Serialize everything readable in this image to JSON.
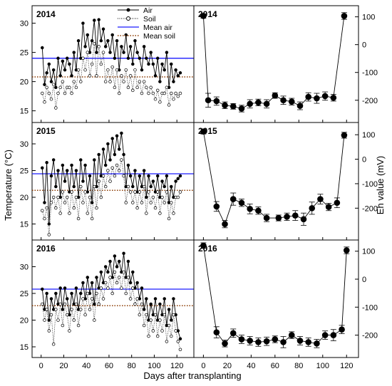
{
  "figure": {
    "y_left_label": "Temperature (°C)",
    "y_right_label": "Eh value (mV)",
    "x_label": "Days after transplanting"
  },
  "legend": {
    "items": [
      {
        "label": "Air",
        "kind": "line-filled",
        "color": "#000000"
      },
      {
        "label": "Soil",
        "kind": "dotted-open",
        "color": "#000000"
      },
      {
        "label": "Mean air",
        "kind": "solid",
        "color": "#1a1aff"
      },
      {
        "label": "Mean soil",
        "kind": "dotted",
        "color": "#8b3a00"
      }
    ]
  },
  "colors": {
    "air": "#000000",
    "soil": "#000000",
    "mean_air": "#1a1aff",
    "mean_soil": "#8b3a00"
  },
  "chart_data": [
    {
      "type": "line",
      "panel": "temperature-2014",
      "title": "2014",
      "xlim": [
        -8,
        135
      ],
      "ylim": [
        13,
        33
      ],
      "yticks": [
        15,
        20,
        25,
        30
      ],
      "mean_air": 24.0,
      "mean_soil": 20.8,
      "series": [
        {
          "name": "Air",
          "x": [
            1,
            3,
            5,
            7,
            9,
            11,
            13,
            15,
            17,
            19,
            21,
            23,
            25,
            27,
            29,
            31,
            33,
            35,
            37,
            39,
            41,
            43,
            45,
            47,
            49,
            51,
            53,
            55,
            57,
            59,
            61,
            63,
            65,
            67,
            69,
            71,
            73,
            75,
            77,
            79,
            81,
            83,
            85,
            87,
            89,
            91,
            93,
            95,
            97,
            99,
            101,
            103,
            105,
            107,
            109,
            111,
            113,
            115,
            117,
            119,
            121,
            123
          ],
          "y": [
            25.8,
            19.5,
            21.5,
            23,
            20,
            22,
            19,
            24,
            21,
            23.5,
            22,
            24,
            23,
            21,
            25,
            22,
            27,
            24,
            30,
            26,
            28,
            25,
            27,
            30.5,
            25,
            30.6,
            27,
            29,
            26,
            27,
            25,
            28,
            24,
            27,
            22,
            26,
            25,
            28,
            24,
            26,
            23,
            27,
            25,
            24,
            22,
            26,
            24,
            23,
            25,
            23,
            21,
            24,
            20,
            23,
            22,
            25,
            19,
            23,
            20,
            22,
            21,
            21.5
          ]
        },
        {
          "name": "Soil",
          "x": [
            1,
            3,
            5,
            7,
            9,
            11,
            13,
            15,
            17,
            19,
            21,
            23,
            25,
            27,
            29,
            31,
            33,
            35,
            37,
            39,
            41,
            43,
            45,
            47,
            49,
            51,
            53,
            55,
            57,
            59,
            61,
            63,
            65,
            67,
            69,
            71,
            73,
            75,
            77,
            79,
            81,
            83,
            85,
            87,
            89,
            91,
            93,
            95,
            97,
            99,
            101,
            103,
            105,
            107,
            109,
            111,
            113,
            115,
            117,
            119,
            121,
            123
          ],
          "y": [
            18,
            16.5,
            19,
            18,
            17,
            19.5,
            15.5,
            18,
            19,
            20,
            18,
            19,
            19,
            18,
            20,
            19,
            22,
            20,
            24,
            22,
            25,
            21,
            23,
            26.5,
            21,
            26,
            23,
            25,
            20,
            22,
            20,
            22.5,
            19,
            22,
            18,
            21,
            20,
            22,
            19,
            21,
            18.5,
            22,
            19,
            20,
            18,
            20,
            19,
            18,
            19,
            18,
            17,
            18.5,
            16.5,
            18,
            18,
            19,
            16,
            18,
            17,
            18,
            17.5,
            18
          ]
        }
      ]
    },
    {
      "type": "line",
      "panel": "temperature-2015",
      "title": "2015",
      "xlim": [
        -8,
        135
      ],
      "ylim": [
        12,
        34
      ],
      "yticks": [
        15,
        20,
        25,
        30
      ],
      "mean_air": 24.4,
      "mean_soil": 21.3,
      "series": [
        {
          "name": "Air",
          "x": [
            1,
            3,
            5,
            7,
            9,
            11,
            13,
            15,
            17,
            19,
            21,
            23,
            25,
            27,
            29,
            31,
            33,
            35,
            37,
            39,
            41,
            43,
            45,
            47,
            49,
            51,
            53,
            55,
            57,
            59,
            61,
            63,
            65,
            67,
            69,
            71,
            73,
            75,
            77,
            79,
            81,
            83,
            85,
            87,
            89,
            91,
            93,
            95,
            97,
            99,
            101,
            103,
            105,
            107,
            109,
            111,
            113,
            115,
            117,
            119,
            121,
            123
          ],
          "y": [
            25.5,
            19,
            26.5,
            15,
            24,
            27,
            22,
            25,
            20,
            26,
            23,
            25,
            21,
            26,
            22,
            25,
            20,
            27,
            23,
            26,
            21,
            24,
            19,
            27,
            22,
            28,
            24,
            29,
            26,
            30,
            27,
            31,
            28,
            31.5,
            29,
            32,
            28,
            22,
            26,
            24,
            22,
            25,
            21,
            24,
            22,
            25,
            20,
            24,
            22,
            23,
            21,
            24,
            20,
            23,
            22,
            24,
            19,
            22,
            20,
            23,
            23.5,
            24
          ]
        },
        {
          "name": "Soil",
          "x": [
            1,
            3,
            5,
            7,
            9,
            11,
            13,
            15,
            17,
            19,
            21,
            23,
            25,
            27,
            29,
            31,
            33,
            35,
            37,
            39,
            41,
            43,
            45,
            47,
            49,
            51,
            53,
            55,
            57,
            59,
            61,
            63,
            65,
            67,
            69,
            71,
            73,
            75,
            77,
            79,
            81,
            83,
            85,
            87,
            89,
            91,
            93,
            95,
            97,
            99,
            101,
            103,
            105,
            107,
            109,
            111,
            113,
            115,
            117,
            119,
            121,
            123
          ],
          "y": [
            17.5,
            16,
            18,
            13,
            19,
            20,
            18,
            20,
            17,
            21,
            19,
            20,
            17,
            21,
            18,
            20,
            16,
            22,
            19,
            21,
            17,
            20,
            16,
            22,
            18,
            23,
            20,
            24,
            22,
            25,
            23,
            25.5,
            24,
            26,
            25,
            27,
            24,
            19,
            22,
            21,
            19,
            21,
            18,
            21,
            19,
            22,
            17,
            21,
            19,
            20,
            18,
            21,
            17,
            20,
            19,
            21,
            16,
            19,
            17,
            20,
            20,
            21
          ]
        }
      ]
    },
    {
      "type": "line",
      "panel": "temperature-2016",
      "title": "2016",
      "xlim": [
        -8,
        135
      ],
      "ylim": [
        13,
        35
      ],
      "yticks": [
        15,
        20,
        25,
        30
      ],
      "mean_air": 25.8,
      "mean_soil": 22.7,
      "series": [
        {
          "name": "Air",
          "x": [
            1,
            3,
            5,
            7,
            9,
            11,
            13,
            15,
            17,
            19,
            21,
            23,
            25,
            27,
            29,
            31,
            33,
            35,
            37,
            39,
            41,
            43,
            45,
            47,
            49,
            51,
            53,
            55,
            57,
            59,
            61,
            63,
            65,
            67,
            69,
            71,
            73,
            75,
            77,
            79,
            81,
            83,
            85,
            87,
            89,
            91,
            93,
            95,
            97,
            99,
            101,
            103,
            105,
            107,
            109,
            111,
            113,
            115,
            117,
            119,
            121,
            123
          ],
          "y": [
            25.8,
            22,
            25,
            20,
            24,
            22,
            25,
            23,
            26,
            22,
            26,
            24,
            21,
            25,
            23,
            26,
            22,
            25,
            27,
            24,
            28,
            25,
            27,
            23,
            28,
            26,
            29,
            27,
            30,
            29,
            31,
            28,
            32,
            30,
            31,
            29,
            32.5,
            28,
            31,
            27,
            29,
            26,
            27,
            24,
            26,
            22,
            24,
            20,
            23,
            21,
            24,
            20,
            23,
            21,
            24,
            19,
            22,
            20,
            24,
            21,
            18,
            16.5
          ]
        },
        {
          "name": "Soil",
          "x": [
            1,
            3,
            5,
            7,
            9,
            11,
            13,
            15,
            17,
            19,
            21,
            23,
            25,
            27,
            29,
            31,
            33,
            35,
            37,
            39,
            41,
            43,
            45,
            47,
            49,
            51,
            53,
            55,
            57,
            59,
            61,
            63,
            65,
            67,
            69,
            71,
            73,
            75,
            77,
            79,
            81,
            83,
            85,
            87,
            89,
            91,
            93,
            95,
            97,
            99,
            101,
            103,
            105,
            107,
            109,
            111,
            113,
            115,
            117,
            119,
            121,
            123
          ],
          "y": [
            23,
            20,
            22,
            18,
            21,
            15.5,
            22,
            20,
            23,
            19,
            23,
            21,
            18,
            22,
            20,
            23,
            19,
            22,
            24,
            21,
            25,
            22,
            24,
            20,
            25,
            23,
            26,
            24,
            27,
            26,
            28,
            25,
            29,
            27,
            28,
            26,
            29,
            25,
            28,
            24,
            26,
            23,
            24,
            21,
            23,
            19,
            21,
            17,
            20,
            18,
            21,
            17,
            20,
            18,
            21,
            16,
            19,
            17,
            21,
            18,
            16,
            14.5
          ]
        }
      ]
    },
    {
      "type": "scatter",
      "panel": "eh-2014",
      "title": "2014",
      "xlim": [
        -8,
        130
      ],
      "ylim": [
        -280,
        140
      ],
      "yticks": [
        -200,
        -100,
        0,
        100
      ],
      "xticks": [
        0,
        20,
        40,
        60,
        80,
        100,
        120
      ],
      "x": [
        0,
        4,
        11,
        18,
        25,
        32,
        39,
        46,
        53,
        60,
        67,
        74,
        81,
        88,
        95,
        102,
        109,
        118
      ],
      "y": [
        103,
        -200,
        -203,
        -218,
        -222,
        -230,
        -213,
        -208,
        -213,
        -183,
        -200,
        -205,
        -220,
        -188,
        -193,
        -185,
        -191,
        103
      ],
      "err": [
        8,
        25,
        15,
        12,
        10,
        12,
        15,
        12,
        15,
        10,
        15,
        12,
        14,
        15,
        18,
        15,
        12,
        12
      ]
    },
    {
      "type": "scatter",
      "panel": "eh-2015",
      "title": "2015",
      "xlim": [
        -8,
        130
      ],
      "ylim": [
        -330,
        150
      ],
      "yticks": [
        -200,
        -100,
        0,
        100
      ],
      "xticks": [
        0,
        20,
        40,
        60,
        80,
        100,
        120
      ],
      "x": [
        0,
        11,
        18,
        25,
        32,
        39,
        46,
        53,
        63,
        70,
        77,
        84,
        91,
        98,
        105,
        112,
        118
      ],
      "y": [
        113,
        -193,
        -265,
        -163,
        -178,
        -203,
        -210,
        -240,
        -240,
        -235,
        -230,
        -245,
        -200,
        -163,
        -195,
        -178,
        98
      ],
      "err": [
        10,
        20,
        15,
        25,
        15,
        20,
        15,
        15,
        12,
        15,
        20,
        25,
        25,
        20,
        15,
        20,
        12
      ]
    },
    {
      "type": "scatter",
      "panel": "eh-2016",
      "title": "2016",
      "xlim": [
        -8,
        130
      ],
      "ylim": [
        -280,
        140
      ],
      "yticks": [
        -200,
        -100,
        0,
        100
      ],
      "xticks": [
        0,
        20,
        40,
        60,
        80,
        100,
        120
      ],
      "x": [
        0,
        11,
        18,
        25,
        32,
        39,
        46,
        53,
        60,
        67,
        74,
        81,
        88,
        95,
        102,
        109,
        116,
        120
      ],
      "y": [
        120,
        -190,
        -230,
        -193,
        -215,
        -220,
        -225,
        -222,
        -215,
        -225,
        -200,
        -220,
        -225,
        -230,
        -200,
        -200,
        -180,
        103
      ],
      "err": [
        10,
        20,
        12,
        15,
        15,
        15,
        15,
        15,
        12,
        20,
        12,
        15,
        15,
        15,
        15,
        20,
        15,
        12
      ]
    }
  ],
  "x_ticks_bottom": [
    "0",
    "20",
    "40",
    "60",
    "80",
    "100",
    "120"
  ]
}
